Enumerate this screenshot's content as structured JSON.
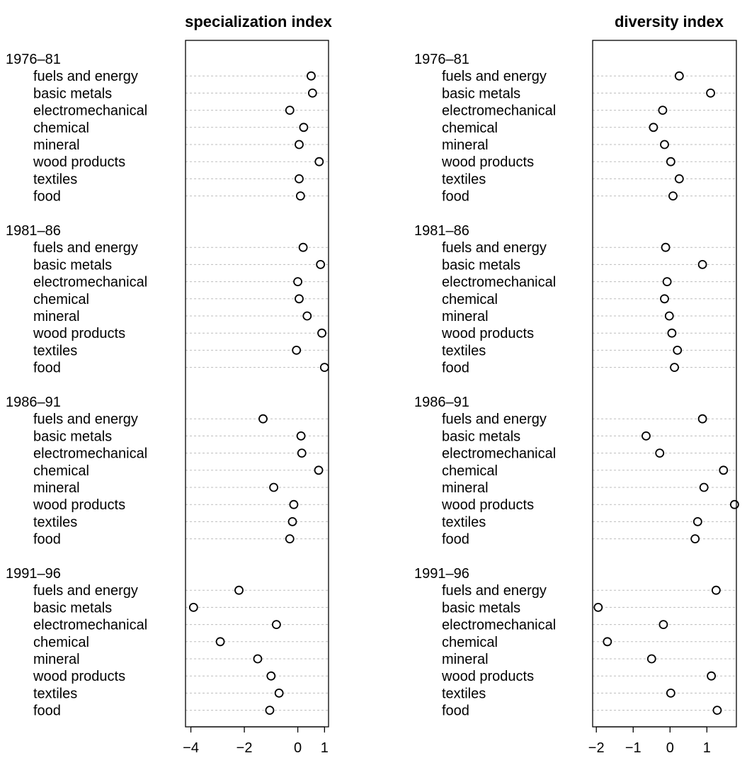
{
  "chart_data": [
    {
      "type": "scatter",
      "title": "specialization index",
      "xlabel": "",
      "ylabel": "",
      "xlim": [
        -4.2,
        1.15
      ],
      "xticks": [
        -4,
        -2,
        0,
        1
      ],
      "xtick_labels": [
        "−4",
        "−2",
        "0",
        "1"
      ],
      "grid": true,
      "groups": [
        {
          "name": "1976–81",
          "categories": [
            "fuels and energy",
            "basic metals",
            "electromechanical",
            "chemical",
            "mineral",
            "wood products",
            "textiles",
            "food"
          ],
          "values": [
            0.5,
            0.55,
            -0.3,
            0.22,
            0.05,
            0.8,
            0.05,
            0.1
          ]
        },
        {
          "name": "1981–86",
          "categories": [
            "fuels and energy",
            "basic metals",
            "electromechanical",
            "chemical",
            "mineral",
            "wood products",
            "textiles",
            "food"
          ],
          "values": [
            0.2,
            0.85,
            0.0,
            0.05,
            0.35,
            0.9,
            -0.05,
            1.0
          ]
        },
        {
          "name": "1986–91",
          "categories": [
            "fuels and energy",
            "basic metals",
            "electromechanical",
            "chemical",
            "mineral",
            "wood products",
            "textiles",
            "food"
          ],
          "values": [
            -1.3,
            0.12,
            0.15,
            0.78,
            -0.9,
            -0.15,
            -0.2,
            -0.3
          ]
        },
        {
          "name": "1991–96",
          "categories": [
            "fuels and energy",
            "basic metals",
            "electromechanical",
            "chemical",
            "mineral",
            "wood products",
            "textiles",
            "food"
          ],
          "values": [
            -2.2,
            -3.9,
            -0.8,
            -2.9,
            -1.5,
            -1.0,
            -0.7,
            -1.05
          ]
        }
      ]
    },
    {
      "type": "scatter",
      "title": "diversity index",
      "xlabel": "",
      "ylabel": "",
      "xlim": [
        -2.1,
        1.8
      ],
      "xticks": [
        -2,
        -1,
        0,
        1
      ],
      "xtick_labels": [
        "−2",
        "−1",
        "0",
        "1"
      ],
      "grid": true,
      "groups": [
        {
          "name": "1976–81",
          "categories": [
            "fuels and energy",
            "basic metals",
            "electromechanical",
            "chemical",
            "mineral",
            "wood products",
            "textiles",
            "food"
          ],
          "values": [
            0.25,
            1.1,
            -0.2,
            -0.45,
            -0.15,
            0.02,
            0.25,
            0.08
          ]
        },
        {
          "name": "1981–86",
          "categories": [
            "fuels and energy",
            "basic metals",
            "electromechanical",
            "chemical",
            "mineral",
            "wood products",
            "textiles",
            "food"
          ],
          "values": [
            -0.12,
            0.88,
            -0.08,
            -0.15,
            -0.02,
            0.05,
            0.2,
            0.12
          ]
        },
        {
          "name": "1986–91",
          "categories": [
            "fuels and energy",
            "basic metals",
            "electromechanical",
            "chemical",
            "mineral",
            "wood products",
            "textiles",
            "food"
          ],
          "values": [
            0.88,
            -0.65,
            -0.28,
            1.45,
            0.92,
            1.75,
            0.75,
            0.68
          ]
        },
        {
          "name": "1991–96",
          "categories": [
            "fuels and energy",
            "basic metals",
            "electromechanical",
            "chemical",
            "mineral",
            "wood products",
            "textiles",
            "food"
          ],
          "values": [
            1.25,
            -1.95,
            -0.18,
            -1.7,
            -0.5,
            1.12,
            0.02,
            1.28
          ]
        }
      ]
    }
  ]
}
